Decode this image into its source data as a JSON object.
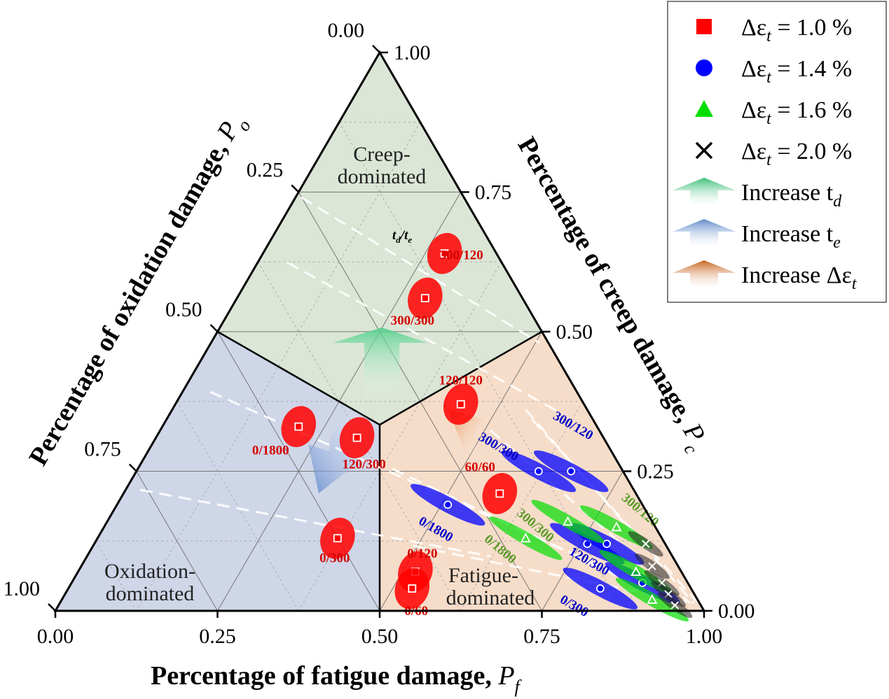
{
  "chart_data": {
    "type": "ternary-scatter",
    "axes": {
      "fatigue": {
        "title": "Percentage of fatigue damage, ",
        "symbol": "P",
        "subscript": "f",
        "ticks": [
          "0.00",
          "0.25",
          "0.50",
          "0.75",
          "1.00"
        ]
      },
      "creep": {
        "title": "Percentage of creep damage, ",
        "symbol": "P",
        "subscript": "c",
        "ticks": [
          "0.00",
          "0.25",
          "0.50",
          "0.75",
          "1.00"
        ]
      },
      "oxidation": {
        "title": "Percentage of oxidation damage, ",
        "symbol": "P",
        "subscript": "o",
        "ticks": [
          "0.00",
          "0.25",
          "0.50",
          "0.75",
          "1.00"
        ]
      }
    },
    "regions": [
      {
        "name": "creep",
        "lines": [
          "Creep-",
          "dominated"
        ],
        "color": "#dbe6d6"
      },
      {
        "name": "oxidation",
        "lines": [
          "Oxidation-",
          "dominated"
        ],
        "color": "#cfd6e8"
      },
      {
        "name": "fatigue",
        "lines": [
          "Fatigue-",
          "dominated"
        ],
        "color": "#f6ddc9"
      }
    ],
    "legend_header": {
      "t1": "t",
      "s1": "d",
      "sep": "/",
      "t2": "t",
      "s2": "e"
    },
    "legend": [
      {
        "marker": "square",
        "color": "#ff0000",
        "prefix": "Δε",
        "sub": "t",
        "value": " = 1.0 %"
      },
      {
        "marker": "circle",
        "color": "#0000ff",
        "prefix": "Δε",
        "sub": "t",
        "value": " = 1.4 %"
      },
      {
        "marker": "triangle",
        "color": "#00dd00",
        "prefix": "Δε",
        "sub": "t",
        "value": " = 1.6 %"
      },
      {
        "marker": "cross",
        "color": "#000000",
        "prefix": "Δε",
        "sub": "t",
        "value": " = 2.0 %"
      },
      {
        "marker": "arrow",
        "color": "#3cbf78",
        "prefix": "Increase t",
        "sub": "d",
        "value": ""
      },
      {
        "marker": "arrow",
        "color": "#5f88c8",
        "prefix": "Increase t",
        "sub": "e",
        "value": ""
      },
      {
        "marker": "arrow",
        "color": "#c8641e",
        "prefix": "Increase Δε",
        "sub": "t",
        "value": ""
      }
    ],
    "arrow_colors": {
      "td": "#5ad18e",
      "te": "#6f94d0",
      "de": "#e8905a"
    },
    "series": [
      {
        "name": "Δεt = 1.0 %",
        "color": "#ff0000",
        "marker": "square",
        "points": [
          {
            "label": "300/120",
            "fatigue": 0.28,
            "creep": 0.64,
            "oxidation": 0.08
          },
          {
            "label": "300/300",
            "fatigue": 0.29,
            "creep": 0.56,
            "oxidation": 0.15
          },
          {
            "label": "120/120",
            "fatigue": 0.44,
            "creep": 0.37,
            "oxidation": 0.19
          },
          {
            "label": "0/1800",
            "fatigue": 0.21,
            "creep": 0.33,
            "oxidation": 0.46
          },
          {
            "label": "120/300",
            "fatigue": 0.31,
            "creep": 0.31,
            "oxidation": 0.38
          },
          {
            "label": "60/60",
            "fatigue": 0.58,
            "creep": 0.21,
            "oxidation": 0.21
          },
          {
            "label": "0/300",
            "fatigue": 0.37,
            "creep": 0.13,
            "oxidation": 0.5
          },
          {
            "label": "0/120",
            "fatigue": 0.52,
            "creep": 0.07,
            "oxidation": 0.41
          },
          {
            "label": "0/60",
            "fatigue": 0.53,
            "creep": 0.04,
            "oxidation": 0.43
          }
        ]
      },
      {
        "name": "Δεt = 1.4 %",
        "color": "#0000ff",
        "marker": "circle",
        "points": [
          {
            "label": "300/120",
            "fatigue": 0.67,
            "creep": 0.25,
            "oxidation": 0.08
          },
          {
            "label": "300/300",
            "fatigue": 0.62,
            "creep": 0.25,
            "oxidation": 0.13
          },
          {
            "label": "0/1800",
            "fatigue": 0.51,
            "creep": 0.19,
            "oxidation": 0.3
          },
          {
            "label": "120/300",
            "fatigue": 0.76,
            "creep": 0.12,
            "oxidation": 0.12
          },
          {
            "label": "",
            "fatigue": 0.79,
            "creep": 0.12,
            "oxidation": 0.09
          },
          {
            "label": "0/300",
            "fatigue": 0.82,
            "creep": 0.04,
            "oxidation": 0.14
          },
          {
            "label": "",
            "fatigue": 0.88,
            "creep": 0.05,
            "oxidation": 0.07
          }
        ]
      },
      {
        "name": "Δεt = 1.6 %",
        "color": "#00dd00",
        "marker": "triangle",
        "points": [
          {
            "label": "300/120",
            "fatigue": 0.79,
            "creep": 0.15,
            "oxidation": 0.06
          },
          {
            "label": "300/300",
            "fatigue": 0.71,
            "creep": 0.16,
            "oxidation": 0.13
          },
          {
            "label": "0/1800",
            "fatigue": 0.66,
            "creep": 0.13,
            "oxidation": 0.21
          },
          {
            "label": "",
            "fatigue": 0.86,
            "creep": 0.07,
            "oxidation": 0.07
          },
          {
            "label": "",
            "fatigue": 0.91,
            "creep": 0.02,
            "oxidation": 0.07
          }
        ]
      },
      {
        "name": "Δεt = 2.0 %",
        "color": "#000000",
        "marker": "cross",
        "points": [
          {
            "label": "",
            "fatigue": 0.85,
            "creep": 0.12,
            "oxidation": 0.03
          },
          {
            "label": "",
            "fatigue": 0.88,
            "creep": 0.08,
            "oxidation": 0.04
          },
          {
            "label": "",
            "fatigue": 0.91,
            "creep": 0.05,
            "oxidation": 0.04
          },
          {
            "label": "",
            "fatigue": 0.93,
            "creep": 0.03,
            "oxidation": 0.04
          },
          {
            "label": "",
            "fatigue": 0.95,
            "creep": 0.01,
            "oxidation": 0.04
          }
        ]
      }
    ]
  }
}
